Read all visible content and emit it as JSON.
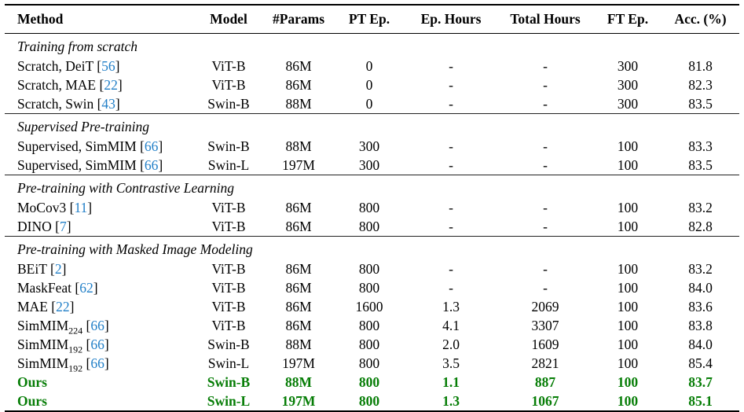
{
  "colors": {
    "citation_blue": "#2380c8",
    "highlight_green": "#067d06",
    "rule_black": "#000000"
  },
  "table": {
    "columns": [
      {
        "key": "method",
        "label": "Method"
      },
      {
        "key": "model",
        "label": "Model"
      },
      {
        "key": "params",
        "label": "#Params"
      },
      {
        "key": "pt_ep",
        "label": "PT Ep."
      },
      {
        "key": "ep_hours",
        "label": "Ep. Hours"
      },
      {
        "key": "total_hours",
        "label": "Total Hours"
      },
      {
        "key": "ft_ep",
        "label": "FT Ep."
      },
      {
        "key": "acc",
        "label": "Acc. (%)"
      }
    ],
    "sections": [
      {
        "title": "Training from scratch",
        "rows": [
          {
            "method": "Scratch, DeiT",
            "cite": "56",
            "model": "ViT-B",
            "params": "86M",
            "pt_ep": "0",
            "ep_hours": "-",
            "total_hours": "-",
            "ft_ep": "300",
            "acc": "81.8",
            "highlight": false
          },
          {
            "method": "Scratch, MAE",
            "cite": "22",
            "model": "ViT-B",
            "params": "86M",
            "pt_ep": "0",
            "ep_hours": "-",
            "total_hours": "-",
            "ft_ep": "300",
            "acc": "82.3",
            "highlight": false
          },
          {
            "method": "Scratch, Swin",
            "cite": "43",
            "model": "Swin-B",
            "params": "88M",
            "pt_ep": "0",
            "ep_hours": "-",
            "total_hours": "-",
            "ft_ep": "300",
            "acc": "83.5",
            "highlight": false
          }
        ]
      },
      {
        "title": "Supervised Pre-training",
        "rows": [
          {
            "method": "Supervised, SimMIM",
            "cite": "66",
            "model": "Swin-B",
            "params": "88M",
            "pt_ep": "300",
            "ep_hours": "-",
            "total_hours": "-",
            "ft_ep": "100",
            "acc": "83.3",
            "highlight": false
          },
          {
            "method": "Supervised, SimMIM",
            "cite": "66",
            "model": "Swin-L",
            "params": "197M",
            "pt_ep": "300",
            "ep_hours": "-",
            "total_hours": "-",
            "ft_ep": "100",
            "acc": "83.5",
            "highlight": false
          }
        ]
      },
      {
        "title": "Pre-training with Contrastive Learning",
        "rows": [
          {
            "method": "MoCov3",
            "cite": "11",
            "model": "ViT-B",
            "params": "86M",
            "pt_ep": "800",
            "ep_hours": "-",
            "total_hours": "-",
            "ft_ep": "100",
            "acc": "83.2",
            "highlight": false
          },
          {
            "method": "DINO",
            "cite": "7",
            "model": "ViT-B",
            "params": "86M",
            "pt_ep": "800",
            "ep_hours": "-",
            "total_hours": "-",
            "ft_ep": "100",
            "acc": "82.8",
            "highlight": false
          }
        ]
      },
      {
        "title": "Pre-training with Masked Image Modeling",
        "rows": [
          {
            "method": "BEiT",
            "cite": "2",
            "model": "ViT-B",
            "params": "86M",
            "pt_ep": "800",
            "ep_hours": "-",
            "total_hours": "-",
            "ft_ep": "100",
            "acc": "83.2",
            "highlight": false
          },
          {
            "method": "MaskFeat",
            "cite": "62",
            "model": "ViT-B",
            "params": "86M",
            "pt_ep": "800",
            "ep_hours": "-",
            "total_hours": "-",
            "ft_ep": "100",
            "acc": "84.0",
            "highlight": false
          },
          {
            "method": "MAE",
            "cite": "22",
            "model": "ViT-B",
            "params": "86M",
            "pt_ep": "1600",
            "ep_hours": "1.3",
            "total_hours": "2069",
            "ft_ep": "100",
            "acc": "83.6",
            "highlight": false
          },
          {
            "method": "SimMIM",
            "sub": "224",
            "cite": "66",
            "model": "ViT-B",
            "params": "86M",
            "pt_ep": "800",
            "ep_hours": "4.1",
            "total_hours": "3307",
            "ft_ep": "100",
            "acc": "83.8",
            "highlight": false
          },
          {
            "method": "SimMIM",
            "sub": "192",
            "cite": "66",
            "model": "Swin-B",
            "params": "88M",
            "pt_ep": "800",
            "ep_hours": "2.0",
            "total_hours": "1609",
            "ft_ep": "100",
            "acc": "84.0",
            "highlight": false
          },
          {
            "method": "SimMIM",
            "sub": "192",
            "cite": "66",
            "model": "Swin-L",
            "params": "197M",
            "pt_ep": "800",
            "ep_hours": "3.5",
            "total_hours": "2821",
            "ft_ep": "100",
            "acc": "85.4",
            "highlight": false
          },
          {
            "method": "Ours",
            "model": "Swin-B",
            "params": "88M",
            "pt_ep": "800",
            "ep_hours": "1.1",
            "total_hours": "887",
            "ft_ep": "100",
            "acc": "83.7",
            "highlight": true
          },
          {
            "method": "Ours",
            "model": "Swin-L",
            "params": "197M",
            "pt_ep": "800",
            "ep_hours": "1.3",
            "total_hours": "1067",
            "ft_ep": "100",
            "acc": "85.1",
            "highlight": true
          }
        ]
      }
    ]
  }
}
